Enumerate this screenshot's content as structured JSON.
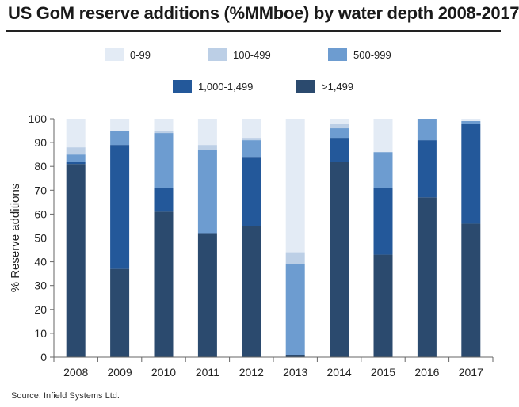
{
  "title": "US GoM reserve additions (%MMboe) by water depth 2008-2017",
  "source": "Source: Infield Systems Ltd.",
  "colors": {
    "0-99": "#e3ebf5",
    "100-499": "#bccfe6",
    "500-999": "#6d9cd0",
    "1,000-1,499": "#23589a",
    ">1,499": "#2b4a6e"
  },
  "chart_data": {
    "type": "bar",
    "stacked": true,
    "title": "US GoM reserve additions (%MMboe) by water depth 2008-2017",
    "xlabel": "",
    "ylabel": "% Reserve additions",
    "ylim": [
      0,
      100
    ],
    "yticks": [
      0,
      10,
      20,
      30,
      40,
      50,
      60,
      70,
      80,
      90,
      100
    ],
    "categories": [
      "2008",
      "2009",
      "2010",
      "2011",
      "2012",
      "2013",
      "2014",
      "2015",
      "2016",
      "2017"
    ],
    "series": [
      {
        "name": ">1,499",
        "values": [
          81,
          37,
          61,
          52,
          55,
          1,
          82,
          43,
          67,
          56
        ]
      },
      {
        "name": "1,000-1,499",
        "values": [
          1,
          52,
          10,
          0,
          29,
          0,
          10,
          28,
          24,
          42
        ]
      },
      {
        "name": "500-999",
        "values": [
          3,
          6,
          23,
          35,
          7,
          38,
          4,
          15,
          9,
          1
        ]
      },
      {
        "name": "100-499",
        "values": [
          3,
          0,
          1,
          2,
          1,
          5,
          2,
          0,
          0,
          0
        ]
      },
      {
        "name": "0-99",
        "values": [
          12,
          5,
          5,
          11,
          8,
          56,
          2,
          14,
          0,
          1
        ]
      }
    ],
    "legend": {
      "placement": "top",
      "rows": [
        [
          "0-99",
          "100-499",
          "500-999"
        ],
        [
          "1,000-1,499",
          ">1,499"
        ]
      ]
    }
  }
}
